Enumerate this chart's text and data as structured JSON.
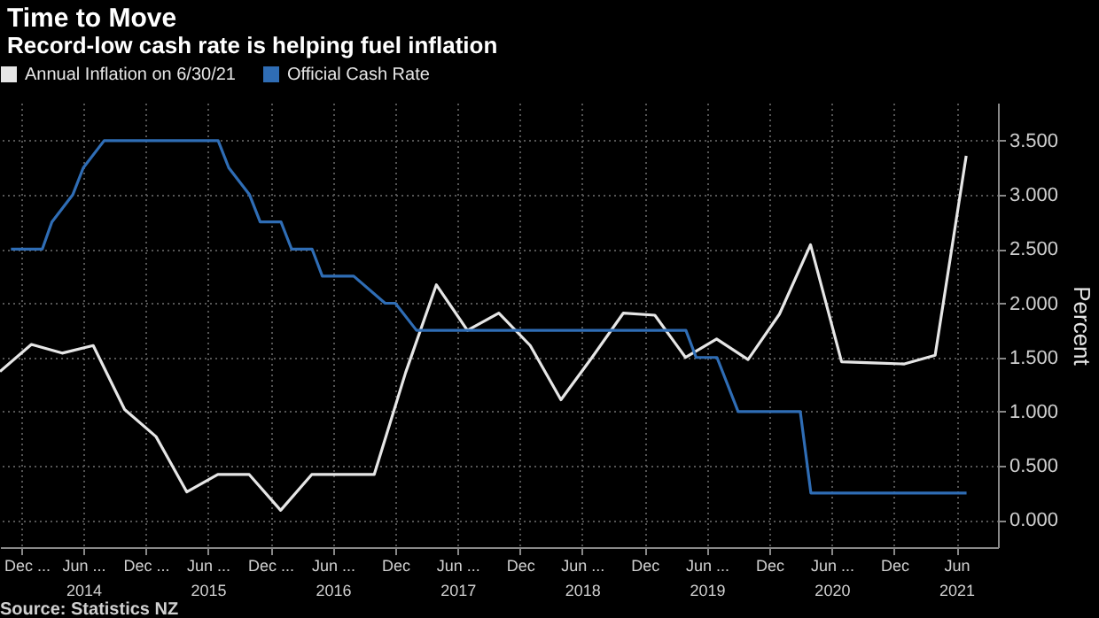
{
  "chart_data": {
    "type": "line",
    "title": "Time to Move",
    "subtitle": "Record-low cash rate is helping fuel inflation",
    "ylabel": "Percent",
    "annotations": [
      "Source: Statistics NZ"
    ],
    "xlim": [
      "2013-09-30",
      "2021-10-01"
    ],
    "ylim": [
      -0.25,
      3.85
    ],
    "xticks": [
      {
        "value": "2013-12",
        "label": "Dec ..."
      },
      {
        "value": "2014-06",
        "label": "Jun ...\n2014"
      },
      {
        "value": "2014-12",
        "label": "Dec ..."
      },
      {
        "value": "2015-06",
        "label": "Jun ...\n2015"
      },
      {
        "value": "2015-12",
        "label": "Dec ..."
      },
      {
        "value": "2016-06",
        "label": "Jun ...\n2016"
      },
      {
        "value": "2016-12",
        "label": "Dec"
      },
      {
        "value": "2017-06",
        "label": "Jun ...\n2017"
      },
      {
        "value": "2017-12",
        "label": "Dec"
      },
      {
        "value": "2018-06",
        "label": "Jun ...\n2018"
      },
      {
        "value": "2018-12",
        "label": "Dec"
      },
      {
        "value": "2019-06",
        "label": "Jun ...\n2019"
      },
      {
        "value": "2019-12",
        "label": "Dec"
      },
      {
        "value": "2020-06",
        "label": "Jun ...\n2020"
      },
      {
        "value": "2020-12",
        "label": "Dec"
      },
      {
        "value": "2021-06",
        "label": "Jun\n2021"
      }
    ],
    "yticks": [
      {
        "value": 0,
        "label": "0.000"
      },
      {
        "value": 0.5,
        "label": "0.500"
      },
      {
        "value": 1,
        "label": "1.000"
      },
      {
        "value": 1.5,
        "label": "1.500"
      },
      {
        "value": 2,
        "label": "2.000"
      },
      {
        "value": 2.5,
        "label": "2.500"
      },
      {
        "value": 3,
        "label": "3.000"
      },
      {
        "value": 3.5,
        "label": "3.500"
      }
    ],
    "grid": true,
    "legend": "top left",
    "line_style": "solid",
    "series": [
      {
        "name": "Annual Inflation on 6/30/21",
        "color": "#e6e6e6",
        "x": [
          "2013-09-30",
          "2013-12-31",
          "2014-03-31",
          "2014-06-30",
          "2014-09-30",
          "2014-12-31",
          "2015-03-31",
          "2015-06-30",
          "2015-09-30",
          "2015-12-31",
          "2016-03-31",
          "2016-06-30",
          "2016-09-30",
          "2016-12-31",
          "2017-03-31",
          "2017-06-30",
          "2017-09-30",
          "2017-12-31",
          "2018-03-31",
          "2018-06-30",
          "2018-09-30",
          "2018-12-31",
          "2019-03-31",
          "2019-06-30",
          "2019-09-30",
          "2019-12-31",
          "2020-03-31",
          "2020-06-30",
          "2020-09-30",
          "2020-12-31",
          "2021-03-31",
          "2021-06-30"
        ],
        "values": [
          1.37,
          1.62,
          1.54,
          1.61,
          1.02,
          0.77,
          0.26,
          0.42,
          0.42,
          0.09,
          0.42,
          0.42,
          0.42,
          1.36,
          2.17,
          1.75,
          1.91,
          1.61,
          1.11,
          1.5,
          1.91,
          1.89,
          1.5,
          1.67,
          1.48,
          1.9,
          2.54,
          1.46,
          1.45,
          1.44,
          1.52,
          3.36
        ]
      },
      {
        "name": "Official Cash Rate",
        "color": "#2f6db5",
        "x": [
          "2013-11",
          "2014-02",
          "2014-03",
          "2014-05",
          "2014-06",
          "2014-08",
          "2015-07",
          "2015-08",
          "2015-10",
          "2015-11",
          "2016-01",
          "2016-02",
          "2016-04",
          "2016-05",
          "2016-08",
          "2016-11",
          "2016-12",
          "2017-02",
          "2019-04",
          "2019-05",
          "2019-07",
          "2019-09",
          "2020-03",
          "2020-04",
          "2021-07-01"
        ],
        "values": [
          2.5,
          2.5,
          2.75,
          3.0,
          3.25,
          3.5,
          3.5,
          3.25,
          3.0,
          2.75,
          2.75,
          2.5,
          2.5,
          2.25,
          2.25,
          2.0,
          2.0,
          1.75,
          1.75,
          1.5,
          1.5,
          1.0,
          1.0,
          0.25,
          0.25
        ]
      }
    ]
  }
}
